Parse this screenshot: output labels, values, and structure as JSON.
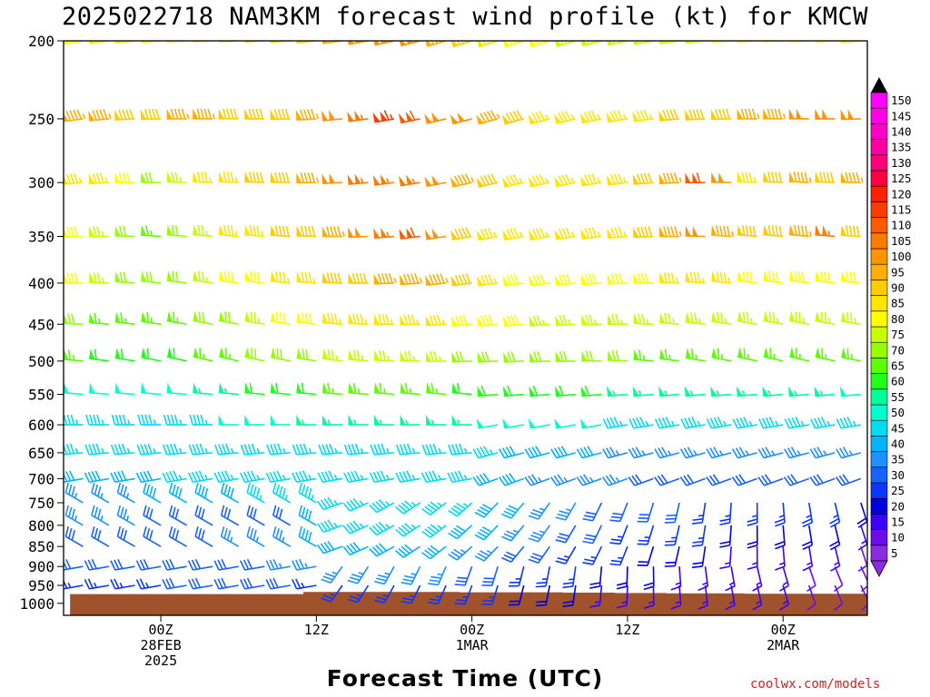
{
  "chart_data": {
    "type": "wind-barb time-height profile",
    "title": "2025022718 NAM3KM forecast wind profile (kt) for KMCW",
    "xlabel": "Forecast Time (UTC)",
    "credit": "coolwx.com/models",
    "y_levels_hPa": [
      200,
      250,
      300,
      350,
      400,
      450,
      500,
      550,
      600,
      650,
      700,
      750,
      800,
      850,
      900,
      950,
      1000
    ],
    "y_tick_labels": [
      "200",
      "250",
      "300",
      "350",
      "400",
      "450",
      "500",
      "550",
      "600",
      "650",
      "700",
      "750",
      "800",
      "850",
      "900",
      "950",
      "1000"
    ],
    "x_ticks": [
      {
        "hour": 6,
        "lines": [
          "00Z",
          "28FEB",
          "2025"
        ]
      },
      {
        "hour": 18,
        "lines": [
          "12Z"
        ]
      },
      {
        "hour": 30,
        "lines": [
          "00Z",
          "1MAR"
        ]
      },
      {
        "hour": 42,
        "lines": [
          "12Z"
        ]
      },
      {
        "hour": 54,
        "lines": [
          "00Z",
          "2MAR"
        ]
      }
    ],
    "forecast_hours": [
      0,
      2,
      4,
      6,
      8,
      10,
      12,
      14,
      16,
      18,
      20,
      22,
      24,
      26,
      28,
      30,
      32,
      34,
      36,
      38,
      40,
      42,
      44,
      46,
      48,
      50,
      52,
      54,
      56,
      58,
      60
    ],
    "colorbar": {
      "levels_kt": [
        5,
        10,
        15,
        20,
        25,
        30,
        35,
        40,
        45,
        50,
        55,
        60,
        65,
        70,
        75,
        80,
        85,
        90,
        95,
        100,
        105,
        110,
        115,
        120,
        125,
        130,
        135,
        140,
        145,
        150
      ],
      "labels": [
        "5",
        "10",
        "15",
        "20",
        "25",
        "30",
        "35",
        "40",
        "45",
        "50",
        "55",
        "60",
        "65",
        "70",
        "75",
        "80",
        "85",
        "90",
        "95",
        "100",
        "105",
        "110",
        "115",
        "120",
        "125",
        "130",
        "135",
        "140",
        "145",
        "150"
      ],
      "colors": [
        "#8a2be2",
        "#6a0dea",
        "#3b00ff",
        "#0000e0",
        "#0a36ff",
        "#1860ff",
        "#1e90ff",
        "#00b4ff",
        "#00dcf0",
        "#00ffd0",
        "#00ff99",
        "#1eff1e",
        "#5aff00",
        "#96ff00",
        "#c8ff00",
        "#ffff00",
        "#ffe600",
        "#ffcc00",
        "#ffae00",
        "#ff9400",
        "#ff7a00",
        "#ff5a00",
        "#ff3c00",
        "#ff1e00",
        "#ff0040",
        "#ff0078",
        "#ff00a0",
        "#ff00c8",
        "#ff00e6",
        "#ff00ff"
      ]
    },
    "surface_pressure_hPa": [
      974,
      974,
      974,
      974,
      974,
      974,
      974,
      974,
      974,
      968,
      968,
      968,
      968,
      968,
      968,
      969,
      969,
      969,
      969,
      970,
      970,
      971,
      971,
      972,
      972,
      972,
      973,
      973,
      973,
      973,
      973
    ],
    "surface_color": "#a0522d",
    "wind_speed_kt": {
      "200": [
        80,
        85,
        85,
        85,
        85,
        85,
        90,
        90,
        90,
        90,
        95,
        100,
        100,
        100,
        95,
        90,
        85,
        80,
        80,
        75,
        75,
        75,
        75,
        75,
        75,
        80,
        80,
        80,
        80,
        80,
        85
      ],
      "250": [
        95,
        95,
        90,
        90,
        95,
        95,
        90,
        90,
        90,
        95,
        100,
        105,
        115,
        110,
        100,
        100,
        95,
        90,
        85,
        85,
        85,
        85,
        85,
        90,
        90,
        90,
        95,
        95,
        100,
        100,
        100
      ],
      "300": [
        85,
        85,
        80,
        70,
        75,
        85,
        85,
        90,
        90,
        95,
        100,
        105,
        105,
        105,
        100,
        95,
        90,
        85,
        85,
        85,
        85,
        85,
        90,
        95,
        110,
        100,
        85,
        90,
        95,
        90,
        95
      ],
      "350": [
        80,
        75,
        70,
        65,
        70,
        75,
        85,
        85,
        90,
        90,
        95,
        100,
        105,
        110,
        100,
        90,
        85,
        85,
        85,
        85,
        85,
        85,
        90,
        95,
        100,
        95,
        90,
        90,
        95,
        105,
        90
      ],
      "400": [
        80,
        75,
        70,
        70,
        70,
        75,
        80,
        80,
        85,
        85,
        90,
        90,
        95,
        95,
        95,
        90,
        85,
        80,
        80,
        80,
        80,
        80,
        80,
        85,
        85,
        85,
        80,
        80,
        80,
        80,
        80
      ],
      "450": [
        70,
        65,
        65,
        65,
        65,
        70,
        70,
        75,
        80,
        80,
        85,
        85,
        85,
        85,
        85,
        80,
        80,
        80,
        75,
        75,
        75,
        75,
        75,
        75,
        75,
        75,
        75,
        75,
        75,
        75,
        75
      ],
      "500": [
        65,
        60,
        60,
        60,
        60,
        65,
        65,
        70,
        70,
        70,
        75,
        75,
        75,
        75,
        75,
        70,
        70,
        70,
        70,
        70,
        70,
        70,
        65,
        65,
        65,
        65,
        65,
        65,
        65,
        65,
        65
      ],
      "550": [
        50,
        50,
        50,
        50,
        50,
        55,
        55,
        60,
        60,
        60,
        65,
        65,
        65,
        65,
        65,
        60,
        60,
        60,
        60,
        60,
        60,
        55,
        55,
        55,
        55,
        55,
        55,
        55,
        55,
        55,
        50
      ],
      "600": [
        45,
        45,
        45,
        45,
        45,
        45,
        50,
        50,
        50,
        55,
        55,
        55,
        55,
        55,
        55,
        55,
        50,
        50,
        50,
        50,
        50,
        45,
        45,
        45,
        45,
        45,
        45,
        45,
        45,
        45,
        45
      ],
      "650": [
        45,
        45,
        45,
        45,
        45,
        45,
        45,
        45,
        45,
        45,
        45,
        45,
        45,
        45,
        45,
        45,
        45,
        40,
        40,
        40,
        40,
        35,
        35,
        35,
        35,
        35,
        35,
        35,
        35,
        35,
        35
      ],
      "700": [
        40,
        40,
        40,
        40,
        45,
        45,
        45,
        45,
        45,
        45,
        45,
        45,
        45,
        45,
        45,
        45,
        40,
        40,
        35,
        35,
        35,
        35,
        30,
        30,
        30,
        30,
        30,
        30,
        30,
        30,
        30
      ],
      "750": [
        35,
        35,
        35,
        40,
        40,
        40,
        40,
        45,
        45,
        45,
        45,
        45,
        45,
        45,
        45,
        45,
        40,
        40,
        35,
        35,
        30,
        30,
        30,
        30,
        25,
        25,
        25,
        25,
        25,
        25,
        20
      ],
      "800": [
        35,
        35,
        35,
        30,
        30,
        30,
        30,
        30,
        30,
        40,
        45,
        45,
        45,
        45,
        45,
        40,
        40,
        35,
        35,
        30,
        30,
        25,
        25,
        25,
        25,
        20,
        20,
        20,
        20,
        20,
        15
      ],
      "850": [
        30,
        30,
        30,
        30,
        30,
        30,
        35,
        35,
        35,
        40,
        40,
        40,
        40,
        40,
        40,
        35,
        35,
        30,
        30,
        25,
        25,
        25,
        20,
        20,
        20,
        15,
        15,
        15,
        15,
        15,
        10
      ],
      "900": [
        30,
        30,
        30,
        30,
        30,
        30,
        30,
        30,
        35,
        35,
        35,
        35,
        35,
        35,
        35,
        30,
        30,
        25,
        25,
        25,
        20,
        20,
        20,
        15,
        15,
        15,
        15,
        15,
        10,
        10,
        10
      ],
      "950": [
        25,
        25,
        25,
        25,
        30,
        30,
        30,
        30,
        30,
        25,
        25,
        25,
        25,
        25,
        25,
        25,
        25,
        20,
        20,
        20,
        15,
        15,
        15,
        15,
        15,
        15,
        15,
        15,
        10,
        10,
        10
      ]
    }
  }
}
